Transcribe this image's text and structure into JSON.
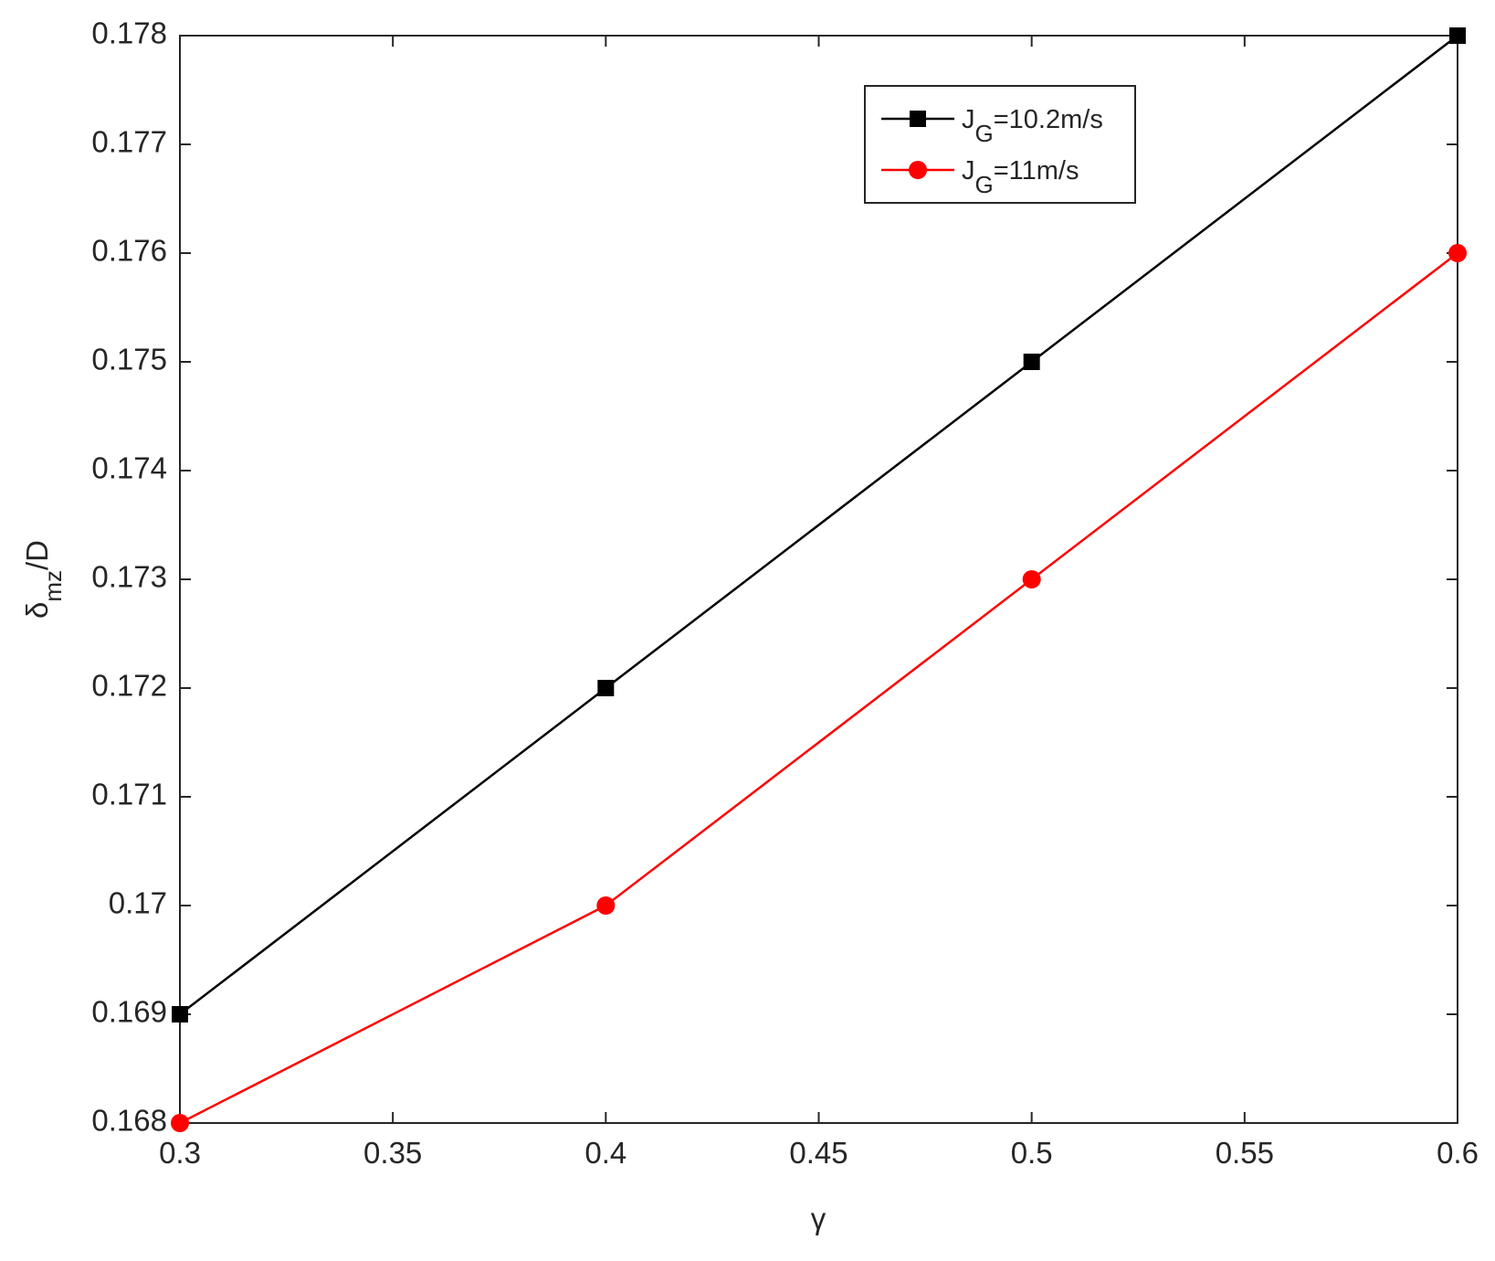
{
  "chart_data": {
    "type": "line",
    "x_label": "γ",
    "y_label": "δmz/D",
    "x": [
      0.3,
      0.4,
      0.5,
      0.6
    ],
    "series": [
      {
        "name": "JG=10.2m/s",
        "color": "#000000",
        "marker": "square",
        "values": [
          0.169,
          0.172,
          0.175,
          0.178
        ]
      },
      {
        "name": "JG=11m/s",
        "color": "#ff0000",
        "marker": "circle",
        "values": [
          0.168,
          0.17,
          0.173,
          0.176
        ]
      }
    ],
    "xlim": [
      0.3,
      0.6
    ],
    "xticks": [
      0.3,
      0.35,
      0.4,
      0.45,
      0.5,
      0.55,
      0.6
    ],
    "ylim": [
      0.168,
      0.178
    ],
    "yticks": [
      0.168,
      0.169,
      0.17,
      0.171,
      0.172,
      0.173,
      0.174,
      0.175,
      0.176,
      0.177,
      0.178
    ],
    "grid": false,
    "legend": "upper right"
  }
}
